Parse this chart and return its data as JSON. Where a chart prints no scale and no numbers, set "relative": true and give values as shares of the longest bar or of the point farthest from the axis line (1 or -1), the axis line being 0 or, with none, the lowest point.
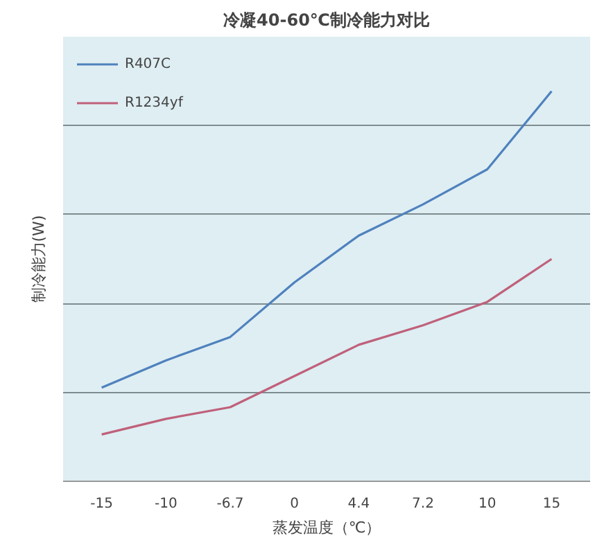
{
  "chart_data": {
    "type": "line",
    "title": "冷凝40-60℃制冷能力对比",
    "xlabel": "蒸发温度（℃）",
    "ylabel": "制冷能力(W)",
    "categories": [
      "-15",
      "-10",
      "-6.7",
      "0",
      "4.4",
      "7.2",
      "10",
      "15"
    ],
    "relative": true,
    "grid": "y",
    "legend": "top left",
    "series": [
      {
        "name": "R407C",
        "color": "#4f81bd",
        "values": [
          0.24,
          0.31,
          0.37,
          0.51,
          0.63,
          0.71,
          0.8,
          1
        ]
      },
      {
        "name": "R1234yf",
        "color": "#c0607a",
        "values": [
          0.12,
          0.16,
          0.19,
          0.27,
          0.35,
          0.4,
          0.46,
          0.57
        ]
      }
    ]
  }
}
